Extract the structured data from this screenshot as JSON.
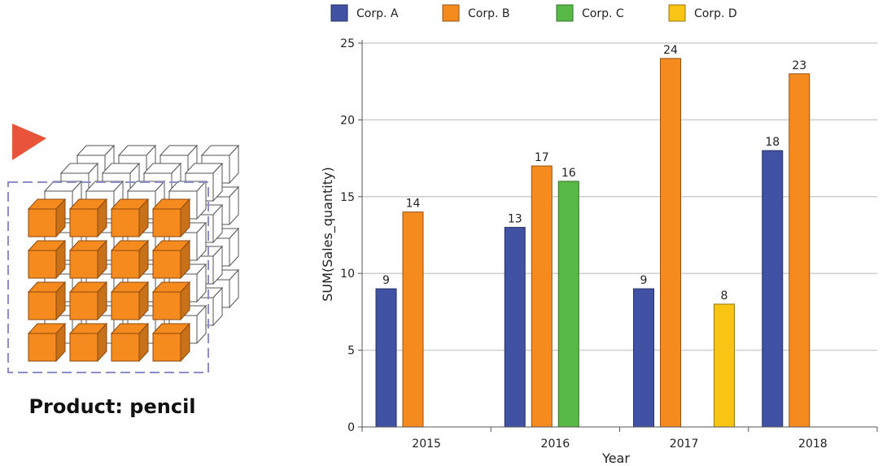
{
  "illustration": {
    "caption": "Product: pencil",
    "highlight_color": "#F58A1F",
    "pointer_color": "#E8543A",
    "selection_frame_color": "#8A8FC8"
  },
  "chart_data": {
    "type": "bar",
    "categories": [
      "2015",
      "2016",
      "2017",
      "2018"
    ],
    "series": [
      {
        "name": "Corp. A",
        "color": "#4152A5",
        "values": [
          9,
          13,
          9,
          18
        ]
      },
      {
        "name": "Corp. B",
        "color": "#F58A1F",
        "values": [
          14,
          17,
          24,
          23
        ]
      },
      {
        "name": "Corp. C",
        "color": "#58B947",
        "values": [
          null,
          16,
          null,
          null
        ]
      },
      {
        "name": "Corp. D",
        "color": "#F9C515",
        "values": [
          null,
          null,
          8,
          null
        ]
      }
    ],
    "xlabel": "Year",
    "ylabel": "SUM(Sales_quantity)",
    "ylim": [
      0,
      25
    ],
    "yticks": [
      0,
      5,
      10,
      15,
      20,
      25
    ],
    "grid": true,
    "legend_position": "top"
  }
}
